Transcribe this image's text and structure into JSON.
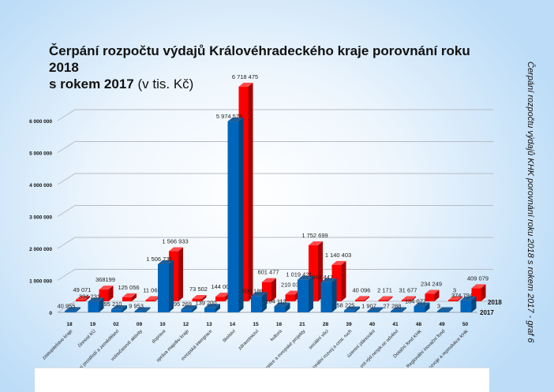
{
  "chart_data": {
    "type": "bar",
    "title": "Čerpání rozpočtu výdajů Královéhradeckého kraje porovnání  roku 2018 s rokem  2017",
    "title_line1": "Čerpání rozpočtu výdajů Královéhradeckého kraje porovnání  roku 2018",
    "title_line2": "s rokem  2017",
    "title_unit": "(v tis. Kč)",
    "side_caption": "Čerpání rozpočtu výdajů KHK porovnání roku 2018 s rokem 2017 - graf 6",
    "codes": [
      "18",
      "19",
      "02",
      "09",
      "10",
      "12",
      "13",
      "14",
      "15",
      "16",
      "21",
      "28",
      "39",
      "40",
      "41",
      "48",
      "49",
      "50"
    ],
    "categories": [
      "zastupitelstvo kraje",
      "činnost KÚ",
      "životní prostředí a zemědělství",
      "volnočasové aktivity",
      "doprava",
      "správa majetku kraje",
      "evropská intergrace",
      "školství",
      "zdravotnictví",
      "kultura",
      "investice a evropské projekty",
      "sociální věci",
      "regionální rozvoj a cest. ruch",
      "územní plánování",
      "rezerva a ost.výd.nespk.se odvětví",
      "Dotační fond KHK",
      "Regionální inovační fond",
      "Fond rozvoje a reprodukce KHK"
    ],
    "series": [
      {
        "name": "2017",
        "color": "#0066bb",
        "values": [
          40955,
          334231,
          95210,
          9953,
          1506731,
          95269,
          139200,
          5974578,
          509186,
          184113,
          1019421,
          942447,
          58225,
          1907,
          27288,
          184077,
          3,
          374794
        ],
        "labels": [
          "40 955",
          "334 231",
          "95 210",
          "9 953",
          "1 506 731",
          "95 269",
          "139 200",
          "5 974 578",
          "509 186",
          "184 113",
          "1 019 421",
          "942 447",
          "58 225",
          "1 907",
          "27 288",
          "184 077",
          "3",
          "374 794"
        ]
      },
      {
        "name": "2018",
        "color": "#ff0000",
        "values": [
          49071,
          368199,
          125056,
          11069,
          1566933,
          73502,
          144000,
          6718475,
          601477,
          210039,
          1752699,
          1140403,
          40096,
          2171,
          31677,
          234249,
          3,
          409079
        ],
        "labels": [
          "49 071",
          "368199",
          "125 056",
          "11 069",
          "1 566 933",
          "73 502",
          "144 000",
          "6 718 475",
          "601 477",
          "210 039",
          "1 752 699",
          "1 140 403",
          "40 096",
          "2 171",
          "31 677",
          "234 249",
          "3",
          "409 079"
        ]
      }
    ],
    "yticks": [
      "0",
      "1 000 000",
      "2 000 000",
      "3 000 000",
      "4 000 000",
      "5 000 000",
      "6 000 000"
    ],
    "ylim": [
      0,
      6900000
    ],
    "grid": true,
    "legend": "right",
    "three_d": true
  }
}
